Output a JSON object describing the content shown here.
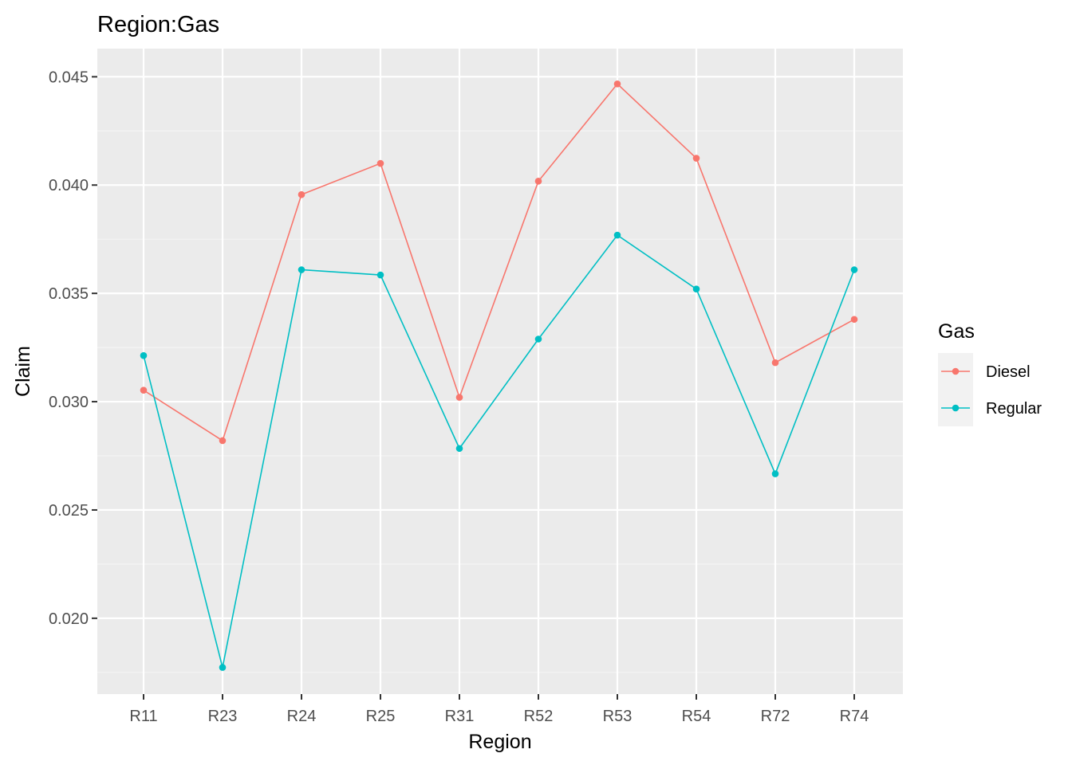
{
  "chart_data": {
    "type": "line",
    "title": "Region:Gas",
    "xlabel": "Region",
    "ylabel": "Claim",
    "categories": [
      "R11",
      "R23",
      "R24",
      "R25",
      "R31",
      "R52",
      "R53",
      "R54",
      "R72",
      "R74"
    ],
    "ylim": [
      0.0165,
      0.0463
    ],
    "yticks": [
      0.02,
      0.025,
      0.03,
      0.035,
      0.04,
      0.045
    ],
    "ytick_labels": [
      "0.020",
      "0.025",
      "0.030",
      "0.035",
      "0.040",
      "0.045"
    ],
    "grid": true,
    "markers": true,
    "legend": {
      "title": "Gas",
      "position": "right"
    },
    "series": [
      {
        "name": "Diesel",
        "color": "#F8766D",
        "values": [
          0.03053,
          0.0282,
          0.03956,
          0.041,
          0.0302,
          0.04018,
          0.04467,
          0.04124,
          0.0318,
          0.0338
        ]
      },
      {
        "name": "Regular",
        "color": "#00BFC4",
        "values": [
          0.03213,
          0.01773,
          0.03609,
          0.03585,
          0.02784,
          0.03289,
          0.03769,
          0.0352,
          0.02667,
          0.03609
        ]
      }
    ],
    "colors": {
      "panel_background": "#EBEBEB",
      "grid_major": "#FFFFFF",
      "grid_minor": "#F5F5F5"
    }
  }
}
